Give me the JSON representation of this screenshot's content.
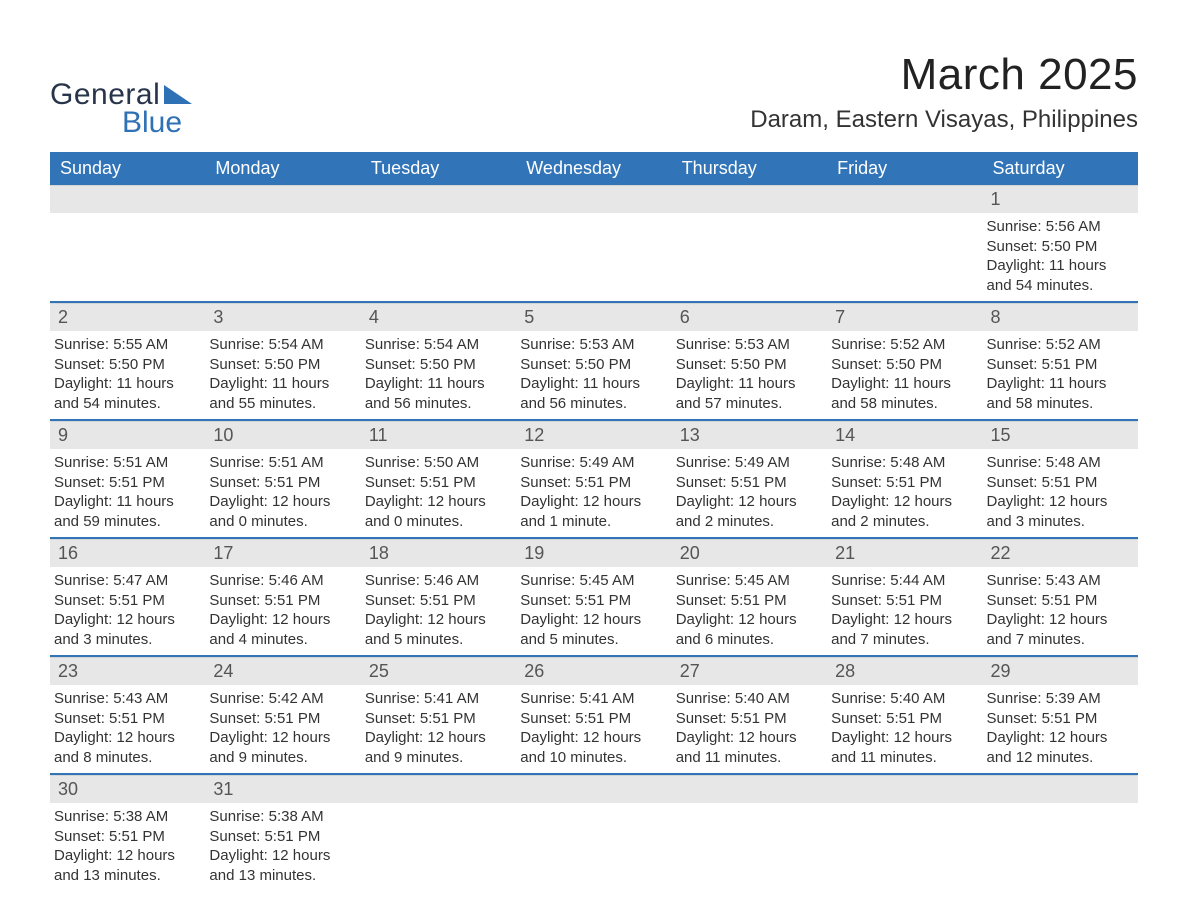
{
  "logo": {
    "text_general": "General",
    "text_blue": "Blue",
    "general_color": "#28344a",
    "blue_color": "#2f71b5"
  },
  "header": {
    "month_title": "March 2025",
    "location": "Daram, Eastern Visayas, Philippines"
  },
  "colors": {
    "header_bg": "#3174b8",
    "header_text": "#ffffff",
    "daybar_bg": "#e7e7e7",
    "daybar_text": "#555555",
    "body_text": "#333333",
    "row_divider": "#3174b8",
    "page_bg": "#ffffff"
  },
  "typography": {
    "month_title_fontsize": 44,
    "location_fontsize": 24,
    "header_cell_fontsize": 18,
    "day_number_fontsize": 18,
    "day_body_fontsize": 15
  },
  "calendar": {
    "day_labels": [
      "Sunday",
      "Monday",
      "Tuesday",
      "Wednesday",
      "Thursday",
      "Friday",
      "Saturday"
    ],
    "weeks": [
      {
        "days": [
          {
            "blank": true
          },
          {
            "blank": true
          },
          {
            "blank": true
          },
          {
            "blank": true
          },
          {
            "blank": true
          },
          {
            "blank": true
          },
          {
            "num": "1",
            "sunrise": "Sunrise: 5:56 AM",
            "sunset": "Sunset: 5:50 PM",
            "daylight": "Daylight: 11 hours and 54 minutes."
          }
        ]
      },
      {
        "days": [
          {
            "num": "2",
            "sunrise": "Sunrise: 5:55 AM",
            "sunset": "Sunset: 5:50 PM",
            "daylight": "Daylight: 11 hours and 54 minutes."
          },
          {
            "num": "3",
            "sunrise": "Sunrise: 5:54 AM",
            "sunset": "Sunset: 5:50 PM",
            "daylight": "Daylight: 11 hours and 55 minutes."
          },
          {
            "num": "4",
            "sunrise": "Sunrise: 5:54 AM",
            "sunset": "Sunset: 5:50 PM",
            "daylight": "Daylight: 11 hours and 56 minutes."
          },
          {
            "num": "5",
            "sunrise": "Sunrise: 5:53 AM",
            "sunset": "Sunset: 5:50 PM",
            "daylight": "Daylight: 11 hours and 56 minutes."
          },
          {
            "num": "6",
            "sunrise": "Sunrise: 5:53 AM",
            "sunset": "Sunset: 5:50 PM",
            "daylight": "Daylight: 11 hours and 57 minutes."
          },
          {
            "num": "7",
            "sunrise": "Sunrise: 5:52 AM",
            "sunset": "Sunset: 5:50 PM",
            "daylight": "Daylight: 11 hours and 58 minutes."
          },
          {
            "num": "8",
            "sunrise": "Sunrise: 5:52 AM",
            "sunset": "Sunset: 5:51 PM",
            "daylight": "Daylight: 11 hours and 58 minutes."
          }
        ]
      },
      {
        "days": [
          {
            "num": "9",
            "sunrise": "Sunrise: 5:51 AM",
            "sunset": "Sunset: 5:51 PM",
            "daylight": "Daylight: 11 hours and 59 minutes."
          },
          {
            "num": "10",
            "sunrise": "Sunrise: 5:51 AM",
            "sunset": "Sunset: 5:51 PM",
            "daylight": "Daylight: 12 hours and 0 minutes."
          },
          {
            "num": "11",
            "sunrise": "Sunrise: 5:50 AM",
            "sunset": "Sunset: 5:51 PM",
            "daylight": "Daylight: 12 hours and 0 minutes."
          },
          {
            "num": "12",
            "sunrise": "Sunrise: 5:49 AM",
            "sunset": "Sunset: 5:51 PM",
            "daylight": "Daylight: 12 hours and 1 minute."
          },
          {
            "num": "13",
            "sunrise": "Sunrise: 5:49 AM",
            "sunset": "Sunset: 5:51 PM",
            "daylight": "Daylight: 12 hours and 2 minutes."
          },
          {
            "num": "14",
            "sunrise": "Sunrise: 5:48 AM",
            "sunset": "Sunset: 5:51 PM",
            "daylight": "Daylight: 12 hours and 2 minutes."
          },
          {
            "num": "15",
            "sunrise": "Sunrise: 5:48 AM",
            "sunset": "Sunset: 5:51 PM",
            "daylight": "Daylight: 12 hours and 3 minutes."
          }
        ]
      },
      {
        "days": [
          {
            "num": "16",
            "sunrise": "Sunrise: 5:47 AM",
            "sunset": "Sunset: 5:51 PM",
            "daylight": "Daylight: 12 hours and 3 minutes."
          },
          {
            "num": "17",
            "sunrise": "Sunrise: 5:46 AM",
            "sunset": "Sunset: 5:51 PM",
            "daylight": "Daylight: 12 hours and 4 minutes."
          },
          {
            "num": "18",
            "sunrise": "Sunrise: 5:46 AM",
            "sunset": "Sunset: 5:51 PM",
            "daylight": "Daylight: 12 hours and 5 minutes."
          },
          {
            "num": "19",
            "sunrise": "Sunrise: 5:45 AM",
            "sunset": "Sunset: 5:51 PM",
            "daylight": "Daylight: 12 hours and 5 minutes."
          },
          {
            "num": "20",
            "sunrise": "Sunrise: 5:45 AM",
            "sunset": "Sunset: 5:51 PM",
            "daylight": "Daylight: 12 hours and 6 minutes."
          },
          {
            "num": "21",
            "sunrise": "Sunrise: 5:44 AM",
            "sunset": "Sunset: 5:51 PM",
            "daylight": "Daylight: 12 hours and 7 minutes."
          },
          {
            "num": "22",
            "sunrise": "Sunrise: 5:43 AM",
            "sunset": "Sunset: 5:51 PM",
            "daylight": "Daylight: 12 hours and 7 minutes."
          }
        ]
      },
      {
        "days": [
          {
            "num": "23",
            "sunrise": "Sunrise: 5:43 AM",
            "sunset": "Sunset: 5:51 PM",
            "daylight": "Daylight: 12 hours and 8 minutes."
          },
          {
            "num": "24",
            "sunrise": "Sunrise: 5:42 AM",
            "sunset": "Sunset: 5:51 PM",
            "daylight": "Daylight: 12 hours and 9 minutes."
          },
          {
            "num": "25",
            "sunrise": "Sunrise: 5:41 AM",
            "sunset": "Sunset: 5:51 PM",
            "daylight": "Daylight: 12 hours and 9 minutes."
          },
          {
            "num": "26",
            "sunrise": "Sunrise: 5:41 AM",
            "sunset": "Sunset: 5:51 PM",
            "daylight": "Daylight: 12 hours and 10 minutes."
          },
          {
            "num": "27",
            "sunrise": "Sunrise: 5:40 AM",
            "sunset": "Sunset: 5:51 PM",
            "daylight": "Daylight: 12 hours and 11 minutes."
          },
          {
            "num": "28",
            "sunrise": "Sunrise: 5:40 AM",
            "sunset": "Sunset: 5:51 PM",
            "daylight": "Daylight: 12 hours and 11 minutes."
          },
          {
            "num": "29",
            "sunrise": "Sunrise: 5:39 AM",
            "sunset": "Sunset: 5:51 PM",
            "daylight": "Daylight: 12 hours and 12 minutes."
          }
        ]
      },
      {
        "days": [
          {
            "num": "30",
            "sunrise": "Sunrise: 5:38 AM",
            "sunset": "Sunset: 5:51 PM",
            "daylight": "Daylight: 12 hours and 13 minutes."
          },
          {
            "num": "31",
            "sunrise": "Sunrise: 5:38 AM",
            "sunset": "Sunset: 5:51 PM",
            "daylight": "Daylight: 12 hours and 13 minutes."
          },
          {
            "blank": true
          },
          {
            "blank": true
          },
          {
            "blank": true
          },
          {
            "blank": true
          },
          {
            "blank": true
          }
        ],
        "last": true
      }
    ]
  }
}
